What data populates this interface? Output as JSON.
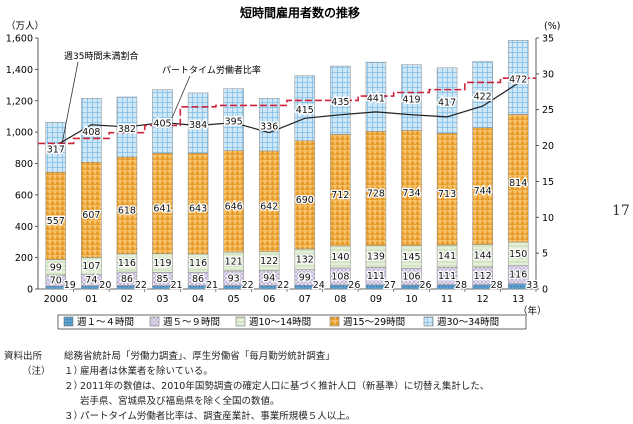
{
  "chart_data": {
    "type": "bar",
    "title": "短時間雇用者数の推移",
    "y_left_label": "（万人）",
    "y_right_label": "(%)",
    "x_unit_label": "（年）",
    "categories": [
      "2000",
      "01",
      "02",
      "03",
      "04",
      "05",
      "06",
      "07",
      "08",
      "09",
      "10",
      "11",
      "12",
      "13"
    ],
    "y_left_ticks": [
      "0",
      "200",
      "400",
      "600",
      "800",
      "1,000",
      "1,200",
      "1,400",
      "1,600"
    ],
    "y_right_ticks": [
      "0",
      "5",
      "10",
      "15",
      "20",
      "25",
      "30",
      "35"
    ],
    "ylim_left": [
      0,
      1600
    ],
    "ylim_right": [
      0,
      35
    ],
    "series": [
      {
        "name": "週１～４時間",
        "color": "#4a90c2",
        "values": [
          19,
          20,
          22,
          21,
          21,
          22,
          22,
          24,
          26,
          27,
          26,
          28,
          28,
          33
        ]
      },
      {
        "name": "週５～９時間",
        "color": "#c9c0dc",
        "values": [
          70,
          74,
          86,
          85,
          86,
          93,
          94,
          99,
          108,
          111,
          106,
          111,
          112,
          116
        ]
      },
      {
        "name": "週10～14時間",
        "color": "#d3e4c6",
        "values": [
          99,
          107,
          116,
          119,
          116,
          121,
          122,
          132,
          140,
          139,
          145,
          141,
          144,
          150
        ]
      },
      {
        "name": "週15～29時間",
        "color": "#f3b24e",
        "values": [
          557,
          607,
          618,
          641,
          643,
          646,
          642,
          690,
          712,
          728,
          734,
          713,
          744,
          814
        ]
      },
      {
        "name": "週30～34時間",
        "color": "#a6d2ee",
        "values": [
          317,
          408,
          382,
          405,
          384,
          395,
          336,
          415,
          435,
          441,
          419,
          417,
          422,
          472
        ]
      }
    ],
    "totals": [
      1062,
      1216,
      1224,
      1271,
      1250,
      1277,
      1216,
      1360,
      1421,
      1446,
      1430,
      1410,
      1450,
      1585
    ],
    "line_short_ratio": {
      "name": "週35時間未満割合",
      "values": [
        20.0,
        22.9,
        22.6,
        23.2,
        22.8,
        23.2,
        21.8,
        23.8,
        24.3,
        24.7,
        24.3,
        24.0,
        25.5,
        28.7
      ]
    },
    "line_part_time_ratio": {
      "name": "パートタイム労働者比率",
      "values": [
        20.3,
        21.0,
        21.8,
        22.8,
        25.4,
        25.6,
        25.6,
        26.3,
        26.3,
        26.9,
        27.4,
        27.8,
        28.8,
        29.4
      ]
    },
    "legend_placement": "bottom",
    "grid": false
  },
  "notes": {
    "source_head": "資料出所",
    "source_text": "総務省統計局「労働力調査」、厚生労働省「毎月勤労統計調査」",
    "notes_head": "（注）",
    "items": [
      {
        "num": "１）",
        "text": "雇用者は休業者を除いている。"
      },
      {
        "num": "２）",
        "text": "2011年の数値は、2010年国勢調査の確定人口に基づく推計人口（新基準）に切替え集計した、"
      },
      {
        "num": "",
        "text": "岩手県、宮城県及び福島県を除く全国の数値。"
      },
      {
        "num": "３）",
        "text": "パートタイム労働者比率は、調査産業計、事業所規模５人以上。"
      }
    ]
  },
  "page_number": "17"
}
